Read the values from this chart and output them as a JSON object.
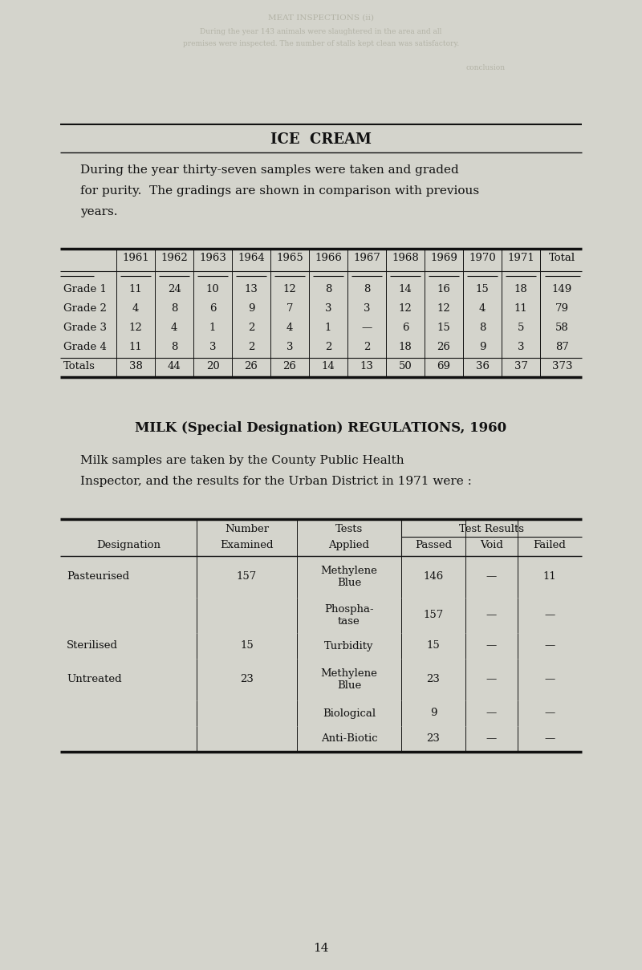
{
  "bg_color": "#d4d4cc",
  "text_color": "#111111",
  "title1": "ICE  CREAM",
  "para1_lines": [
    "During the year thirty-seven samples were taken and graded",
    "for purity.  The gradings are shown in comparison with previous",
    "years."
  ],
  "table1_years": [
    "1961",
    "1962",
    "1963",
    "1964",
    "1965",
    "1966",
    "1967",
    "1968",
    "1969",
    "1970",
    "1971",
    "Total"
  ],
  "table1_rows": [
    [
      "Grade 1",
      "11",
      "24",
      "10",
      "13",
      "12",
      "8",
      "8",
      "14",
      "16",
      "15",
      "18",
      "149"
    ],
    [
      "Grade 2",
      "4",
      "8",
      "6",
      "9",
      "7",
      "3",
      "3",
      "12",
      "12",
      "4",
      "11",
      "79"
    ],
    [
      "Grade 3",
      "12",
      "4",
      "1",
      "2",
      "4",
      "1",
      "—",
      "6",
      "15",
      "8",
      "5",
      "58"
    ],
    [
      "Grade 4",
      "11",
      "8",
      "3",
      "2",
      "3",
      "2",
      "2",
      "18",
      "26",
      "9",
      "3",
      "87"
    ],
    [
      "Totals",
      "38",
      "44",
      "20",
      "26",
      "26",
      "14",
      "13",
      "50",
      "69",
      "36",
      "37",
      "373"
    ]
  ],
  "title2": "MILK (Special Designation) REGULATIONS, 1960",
  "para2_lines": [
    "Milk samples are taken by the County Public Health",
    "Inspector, and the results for the Urban District in 1971 were :"
  ],
  "table2_rows": [
    [
      "Pasteurised",
      "157",
      "Methylene\nBlue",
      "146",
      "—",
      "11"
    ],
    [
      "",
      "",
      "Phospha-\ntase",
      "157",
      "—",
      "—"
    ],
    [
      "Sterilised",
      "15",
      "Turbidity",
      "15",
      "—",
      "—"
    ],
    [
      "Untreated",
      "23",
      "Methylene\nBlue",
      "23",
      "—",
      "—"
    ],
    [
      "",
      "",
      "Biological",
      "9",
      "—",
      "—"
    ],
    [
      "",
      "",
      "Anti-Biotic",
      "23",
      "—",
      "—"
    ]
  ],
  "page_number": "14",
  "bleed_lines": [
    "MEAT INSPECTIONS (ii)",
    "During the year 143 animals were slaughtered in the area and all",
    "premises were inspected. The number of stalls kept clean was satisfactory.",
    "conclusion"
  ]
}
